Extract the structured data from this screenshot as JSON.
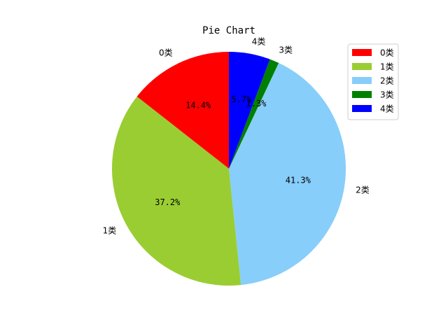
{
  "chart_data": {
    "type": "pie",
    "title": "Pie Chart",
    "categories": [
      "0类",
      "1类",
      "2类",
      "3类",
      "4类"
    ],
    "values": [
      14.4,
      37.2,
      41.3,
      1.3,
      5.7
    ],
    "value_labels": [
      "14.4%",
      "37.2%",
      "41.3%",
      "1.3%",
      "5.7%"
    ],
    "colors": [
      "#ff0000",
      "#9acd32",
      "#87cefa",
      "#008000",
      "#0000ff"
    ],
    "start_angle_deg": 90,
    "direction": "counterclockwise",
    "legend": {
      "position": "top-right",
      "entries": [
        "0类",
        "1类",
        "2类",
        "3类",
        "4类"
      ]
    }
  }
}
